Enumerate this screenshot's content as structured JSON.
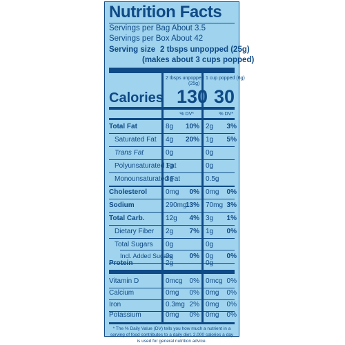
{
  "label": {
    "title": "Nutrition Facts",
    "servings_bag": "Servings per Bag About 3.5",
    "servings_box": "Servings per Box About 42",
    "serving_size_label": "Serving size",
    "serving_size_value": "2 tbsps unpopped (25g)",
    "serving_size_note": "(makes about 3 cups popped)",
    "col1_header": "2 tbsps unpopped",
    "col1_header_sub": "(25g)",
    "col2_header": "1 cup popped (6g)",
    "calories_label": "Calories",
    "calories_col1": "130",
    "calories_col2": "30",
    "dv_header": "% DV*",
    "rows": [
      {
        "name": "Total Fat",
        "amt1": "8g",
        "pct1": "10%",
        "amt2": "2g",
        "pct2": "3%"
      },
      {
        "name": "Saturated Fat",
        "amt1": "4g",
        "pct1": "20%",
        "amt2": "1g",
        "pct2": "5%"
      },
      {
        "name": "Trans Fat",
        "amt1": "0g",
        "pct1": "",
        "amt2": "0g",
        "pct2": ""
      },
      {
        "name": "Polyunsaturated Fat",
        "amt1": "1g",
        "pct1": "",
        "amt2": "0g",
        "pct2": ""
      },
      {
        "name": "Monounsaturated Fat",
        "amt1": "3g",
        "pct1": "",
        "amt2": "0.5g",
        "pct2": ""
      },
      {
        "name": "Cholesterol",
        "amt1": "0mg",
        "pct1": "0%",
        "amt2": "0mg",
        "pct2": "0%"
      },
      {
        "name": "Sodium",
        "amt1": "290mg",
        "pct1": "13%",
        "amt2": "70mg",
        "pct2": "3%"
      },
      {
        "name": "Total Carb.",
        "amt1": "12g",
        "pct1": "4%",
        "amt2": "3g",
        "pct2": "1%"
      },
      {
        "name": "Dietary Fiber",
        "amt1": "2g",
        "pct1": "7%",
        "amt2": "1g",
        "pct2": "0%"
      },
      {
        "name": "Total Sugars",
        "amt1": "0g",
        "pct1": "",
        "amt2": "0g",
        "pct2": ""
      },
      {
        "name": "Incl. Added Sugars",
        "amt1": "0g",
        "pct1": "0%",
        "amt2": "0g",
        "pct2": "0%"
      },
      {
        "name": "Protein",
        "amt1": "2g",
        "pct1": "",
        "amt2": "0g",
        "pct2": ""
      },
      {
        "name": "Vitamin D",
        "amt1": "0mcg",
        "pct1": "0%",
        "amt2": "0mcg",
        "pct2": "0%"
      },
      {
        "name": "Calcium",
        "amt1": "0mg",
        "pct1": "0%",
        "amt2": "0mg",
        "pct2": "0%"
      },
      {
        "name": "Iron",
        "amt1": "0.3mg",
        "pct1": "2%",
        "amt2": "0mg",
        "pct2": "0%"
      },
      {
        "name": "Potassium",
        "amt1": "0mg",
        "pct1": "0%",
        "amt2": "0mg",
        "pct2": "0%"
      }
    ],
    "footnote": "* The % Daily Value (DV) tells you how much a nutrient in a serving of food contributes to a daily diet. 2,000 calories a day is used for general nutrition advice."
  },
  "colors": {
    "panel": "#9fd3ee",
    "ink": "#0f4a86"
  }
}
